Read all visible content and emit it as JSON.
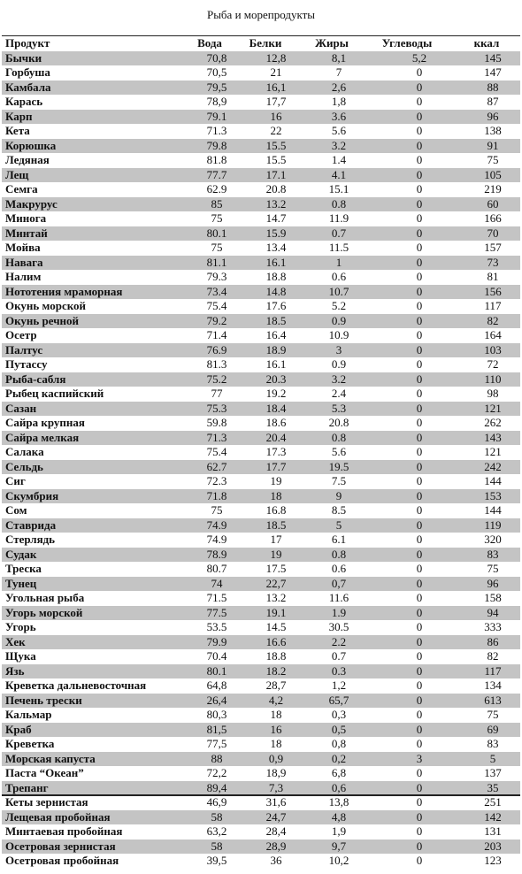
{
  "header": {
    "title": "Рыба и морепродукты"
  },
  "table": {
    "columns": [
      "Продукт",
      "Вода",
      "Белки",
      "Жиры",
      "Углеводы",
      "ккал"
    ],
    "rows": [
      [
        "Бычки",
        "70,8",
        "12,8",
        "8,1",
        "5,2",
        "145"
      ],
      [
        "Горбуша",
        "70,5",
        "21",
        "7",
        "0",
        "147"
      ],
      [
        "Камбала",
        "79,5",
        "16,1",
        "2,6",
        "0",
        "88"
      ],
      [
        "Карась",
        "78,9",
        "17,7",
        "1,8",
        "0",
        "87"
      ],
      [
        "Карп",
        "79.1",
        "16",
        "3.6",
        "0",
        "96"
      ],
      [
        "Кета",
        "71.3",
        "22",
        "5.6",
        "0",
        "138"
      ],
      [
        "Корюшка",
        "79.8",
        "15.5",
        "3.2",
        "0",
        "91"
      ],
      [
        "Ледяная",
        "81.8",
        "15.5",
        "1.4",
        "0",
        "75"
      ],
      [
        "Лещ",
        "77.7",
        "17.1",
        "4.1",
        "0",
        "105"
      ],
      [
        "Семга",
        "62.9",
        "20.8",
        "15.1",
        "0",
        "219"
      ],
      [
        "Макрурус",
        "85",
        "13.2",
        "0.8",
        "0",
        "60"
      ],
      [
        "Минога",
        "75",
        "14.7",
        "11.9",
        "0",
        "166"
      ],
      [
        "Минтай",
        "80.1",
        "15.9",
        "0.7",
        "0",
        "70"
      ],
      [
        "Мойва",
        "75",
        "13.4",
        "11.5",
        "0",
        "157"
      ],
      [
        "Навага",
        "81.1",
        "16.1",
        "1",
        "0",
        "73"
      ],
      [
        "Налим",
        "79.3",
        "18.8",
        "0.6",
        "0",
        "81"
      ],
      [
        "Нототения мраморная",
        "73.4",
        "14.8",
        "10.7",
        "0",
        "156"
      ],
      [
        "Окунь морской",
        "75.4",
        "17.6",
        "5.2",
        "0",
        "117"
      ],
      [
        "Окунь речной",
        "79.2",
        "18.5",
        "0.9",
        "0",
        "82"
      ],
      [
        "Осетр",
        "71.4",
        "16.4",
        "10.9",
        "0",
        "164"
      ],
      [
        "Палтус",
        "76.9",
        "18.9",
        "3",
        "0",
        "103"
      ],
      [
        "Путассу",
        "81.3",
        "16.1",
        "0.9",
        "0",
        "72"
      ],
      [
        "Рыба-сабля",
        "75.2",
        "20.3",
        "3.2",
        "0",
        "110"
      ],
      [
        "Рыбец каспийский",
        "77",
        "19.2",
        "2.4",
        "0",
        "98"
      ],
      [
        "Сазан",
        "75.3",
        "18.4",
        "5.3",
        "0",
        "121"
      ],
      [
        "Сайра крупная",
        "59.8",
        "18.6",
        "20.8",
        "0",
        "262"
      ],
      [
        "Сайра мелкая",
        "71.3",
        "20.4",
        "0.8",
        "0",
        "143"
      ],
      [
        "Салака",
        "75.4",
        "17.3",
        "5.6",
        "0",
        "121"
      ],
      [
        "Сельдь",
        "62.7",
        "17.7",
        "19.5",
        "0",
        "242"
      ],
      [
        "Сиг",
        "72.3",
        "19",
        "7.5",
        "0",
        "144"
      ],
      [
        "Скумбрия",
        "71.8",
        "18",
        "9",
        "0",
        "153"
      ],
      [
        "Сом",
        "75",
        "16.8",
        "8.5",
        "0",
        "144"
      ],
      [
        "Ставрида",
        "74.9",
        "18.5",
        "5",
        "0",
        "119"
      ],
      [
        "Стерлядь",
        "74.9",
        "17",
        "6.1",
        "0",
        "320"
      ],
      [
        "Судак",
        "78.9",
        "19",
        "0.8",
        "0",
        "83"
      ],
      [
        "Треска",
        "80.7",
        "17.5",
        "0.6",
        "0",
        "75"
      ],
      [
        "Тунец",
        "74",
        "22,7",
        "0,7",
        "0",
        "96"
      ],
      [
        "Угольная рыба",
        "71.5",
        "13.2",
        "11.6",
        "0",
        "158"
      ],
      [
        "Угорь морской",
        "77.5",
        "19.1",
        "1.9",
        "0",
        "94"
      ],
      [
        "Угорь",
        "53.5",
        "14.5",
        "30.5",
        "0",
        "333"
      ],
      [
        "Хек",
        "79.9",
        "16.6",
        "2.2",
        "0",
        "86"
      ],
      [
        "Щука",
        "70.4",
        "18.8",
        "0.7",
        "0",
        "82"
      ],
      [
        "Язь",
        "80.1",
        "18.2",
        "0.3",
        "0",
        "117"
      ],
      [
        "Креветка дальневосточная",
        "64,8",
        "28,7",
        "1,2",
        "0",
        "134"
      ],
      [
        "Печень трески",
        "26,4",
        "4,2",
        "65,7",
        "0",
        "613"
      ],
      [
        "Кальмар",
        "80,3",
        "18",
        "0,3",
        "0",
        "75"
      ],
      [
        "Краб",
        "81,5",
        "16",
        "0,5",
        "0",
        "69"
      ],
      [
        "Креветка",
        "77,5",
        "18",
        "0,8",
        "0",
        "83"
      ],
      [
        "Морская капуста",
        "88",
        "0,9",
        "0,2",
        "3",
        "5"
      ],
      [
        "Паста “Океан”",
        "72,2",
        "18,9",
        "6,8",
        "0",
        "137"
      ],
      [
        "Трепанг",
        "89,4",
        "7,3",
        "0,6",
        "0",
        "35"
      ],
      [
        "Кеты зернистая",
        "46,9",
        "31,6",
        "13,8",
        "0",
        "251"
      ],
      [
        "Лещевая пробойная",
        "58",
        "24,7",
        "4,8",
        "0",
        "142"
      ],
      [
        "Минтаевая пробойная",
        "63,2",
        "28,4",
        "1,9",
        "0",
        "131"
      ],
      [
        "Осетровая зернистая",
        "58",
        "28,9",
        "9,7",
        "0",
        "203"
      ],
      [
        "Осетровая пробойная",
        "39,5",
        "36",
        "10,2",
        "0",
        "123"
      ]
    ]
  }
}
